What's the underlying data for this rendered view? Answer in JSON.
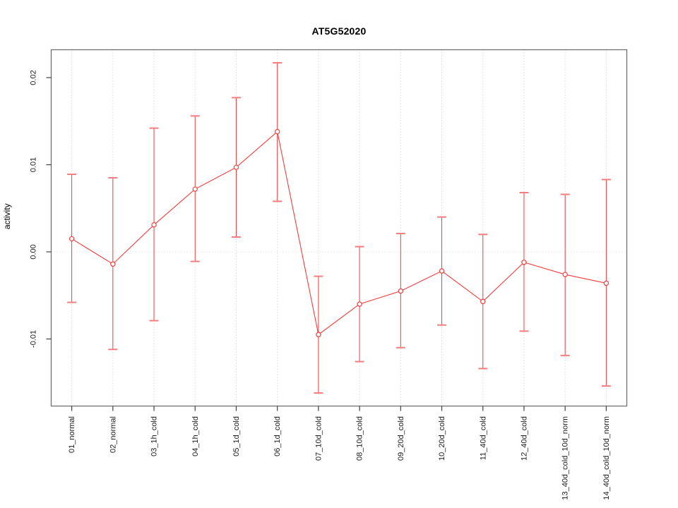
{
  "chart_data": {
    "type": "line",
    "title": "AT5G52020",
    "xlabel": "",
    "ylabel": "activity",
    "marker": "open-circle",
    "legend": null,
    "grid": {
      "vertical": "dotted-per-category",
      "horizontal_zero_line": true
    },
    "categories": [
      "01_normal",
      "02_normal",
      "03_1h_cold",
      "04_1h_cold",
      "05_1d_cold",
      "06_1d_cold",
      "07_10d_cold",
      "08_10d_cold",
      "09_20d_cold",
      "10_20d_cold",
      "11_40d_cold",
      "12_40d_cold",
      "13_40d_cold_10d_norm",
      "14_40d_cold_10d_norm"
    ],
    "values": [
      0.0015,
      -0.0014,
      0.0031,
      0.0072,
      0.0097,
      0.0138,
      -0.0095,
      -0.006,
      -0.0045,
      -0.0022,
      -0.0057,
      -0.0012,
      -0.0026,
      -0.0036
    ],
    "error_upper": [
      0.0089,
      0.0085,
      0.0142,
      0.0156,
      0.0177,
      0.0217,
      -0.0028,
      0.0006,
      0.0021,
      0.004,
      0.002,
      0.0068,
      0.0066,
      0.0083
    ],
    "error_lower": [
      -0.0058,
      -0.0112,
      -0.0079,
      -0.0011,
      0.0017,
      0.0058,
      -0.0162,
      -0.0126,
      -0.011,
      -0.0084,
      -0.0134,
      -0.0091,
      -0.0119,
      -0.0154
    ],
    "ylim": [
      -0.0177,
      0.0232
    ],
    "y_ticks": {
      "values": [
        -0.01,
        0.0,
        0.01,
        0.02
      ],
      "labels": [
        "-0.01",
        "0.00",
        "0.01",
        "0.02"
      ]
    },
    "colors": {
      "series": "#f43c3c",
      "error_cap": "#f57d7d",
      "grid": "#c8c8c8",
      "zero_line": "#d9d9d9",
      "box": "#707070",
      "tick": "#404040",
      "text": "#1a1a1a",
      "background": "#ffffff"
    }
  }
}
